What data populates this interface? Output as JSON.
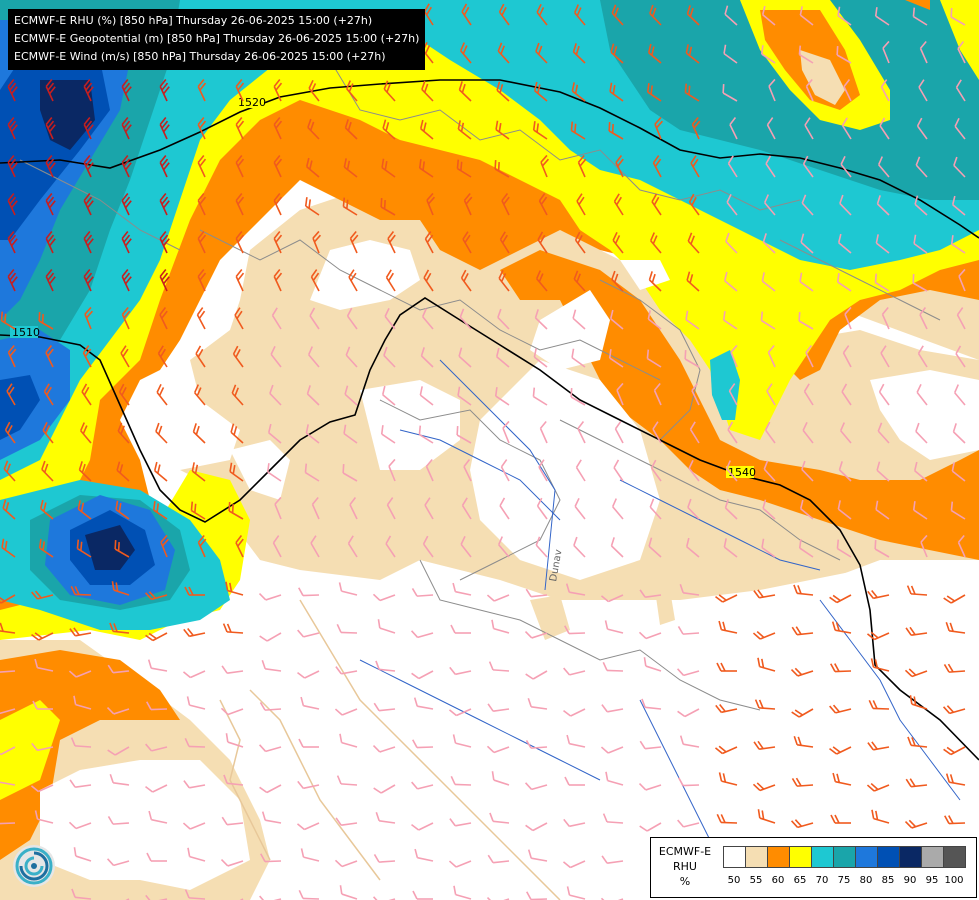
{
  "title": {
    "lines": [
      "ECMWF-E RHU (%) [850 hPa] Thursday 26-06-2025 15:00 (+27h)",
      "ECMWF-E Geopotential (m) [850 hPa] Thursday 26-06-2025 15:00 (+27h)",
      "ECMWF-E Wind (m/s) [850 hPa] Thursday 26-06-2025 15:00 (+27h)"
    ]
  },
  "legend": {
    "model": "ECMWF-E",
    "variable": "RHU",
    "unit": "%",
    "classes": [
      {
        "value": "50",
        "color": "#ffffff"
      },
      {
        "value": "55",
        "color": "#f5deb3"
      },
      {
        "value": "60",
        "color": "#ff8c00"
      },
      {
        "value": "65",
        "color": "#ffff00"
      },
      {
        "value": "70",
        "color": "#1ec8d2"
      },
      {
        "value": "75",
        "color": "#1aa5aa"
      },
      {
        "value": "80",
        "color": "#1e78dc"
      },
      {
        "value": "85",
        "color": "#0050b4"
      },
      {
        "value": "90",
        "color": "#0a2864"
      },
      {
        "value": "95",
        "color": "#aaaaaa"
      },
      {
        "value": "100",
        "color": "#555555"
      }
    ]
  },
  "contours": [
    {
      "label": "1520"
    },
    {
      "label": "1510"
    },
    {
      "label": "1540"
    }
  ],
  "map_labels": {
    "river": "Dunav"
  },
  "colors": {
    "wind_strong": "#c81e1e",
    "wind_medium": "#f05a1e",
    "wind_light": "#f5a0b4",
    "border": "#8c8c8c",
    "coast": "#e8c89a",
    "river": "#3264c8",
    "geopotential": "#000000"
  },
  "icons": {
    "logo": "ecmwf-logo-icon"
  }
}
